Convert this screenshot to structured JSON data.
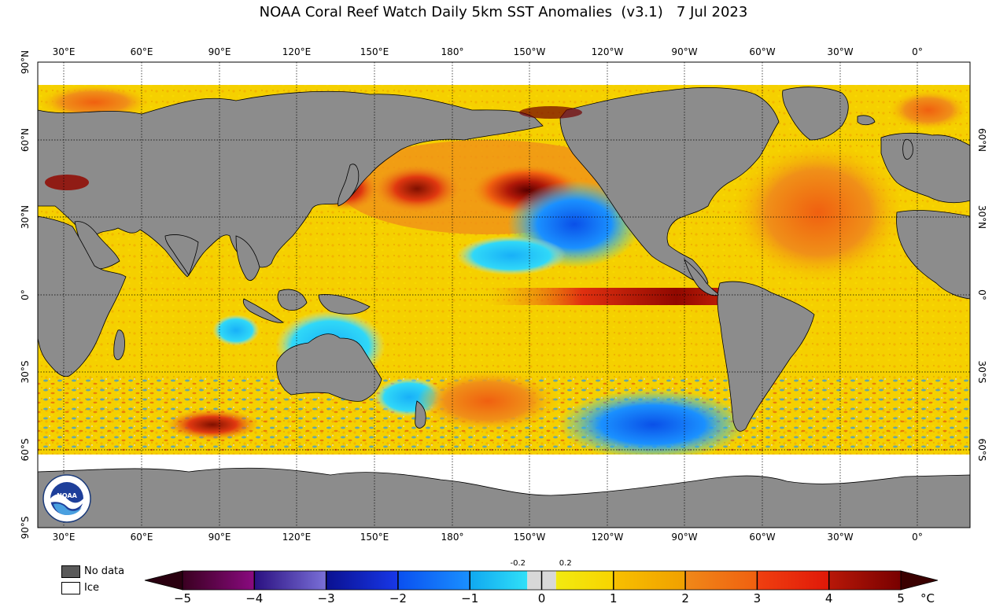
{
  "title": "NOAA Coral Reef Watch Daily 5km SST Anomalies  (v3.1)   7 Jul 2023",
  "map": {
    "longitude_labels": [
      "30°E",
      "60°E",
      "90°E",
      "120°E",
      "150°E",
      "180°",
      "150°W",
      "120°W",
      "90°W",
      "60°W",
      "30°W",
      "0°"
    ],
    "latitude_labels_left": [
      "90°N",
      "60°N",
      "30°N",
      "0°",
      "30°S",
      "60°S",
      "90°S"
    ],
    "latitude_labels_right": [
      "60°N",
      "30°N",
      "0°",
      "30°S",
      "60°S"
    ],
    "colors": {
      "land": "#8c8c8c",
      "ice": "#ffffff",
      "no_data": "#5a5a5a",
      "ocean_base": "#f5d000"
    },
    "features": [
      "positive anomaly North Pacific",
      "negative anomaly east of Hawaii",
      "positive equatorial Pacific (El Niño)",
      "negative anomaly Southern Pacific"
    ]
  },
  "legend": {
    "no_data_label": "No data",
    "ice_label": "Ice"
  },
  "colorbar": {
    "ticks": [
      "−5",
      "−4",
      "−3",
      "−2",
      "−1",
      "0",
      "1",
      "2",
      "3",
      "4",
      "5"
    ],
    "small_labels": [
      "-0.2",
      "0.2"
    ],
    "unit": "°C",
    "range": [
      -5,
      5
    ],
    "segments": [
      {
        "from": -5,
        "to": -4,
        "c1": "#3a0020",
        "c2": "#8a0a80"
      },
      {
        "from": -4,
        "to": -3,
        "c1": "#2a1080",
        "c2": "#7a70d8"
      },
      {
        "from": -3,
        "to": -2,
        "c1": "#0a1090",
        "c2": "#1838e8"
      },
      {
        "from": -2,
        "to": -1,
        "c1": "#0a50f0",
        "c2": "#1a90ff"
      },
      {
        "from": -1,
        "to": -0.2,
        "c1": "#10a8f0",
        "c2": "#30e0f8"
      },
      {
        "from": -0.2,
        "to": 0.2,
        "c1": "#d8d8d8",
        "c2": "#d8d8d8"
      },
      {
        "from": 0.2,
        "to": 1,
        "c1": "#f2ea10",
        "c2": "#f8d400"
      },
      {
        "from": 1,
        "to": 2,
        "c1": "#f8c000",
        "c2": "#f0a000"
      },
      {
        "from": 2,
        "to": 3,
        "c1": "#f08818",
        "c2": "#f06010"
      },
      {
        "from": 3,
        "to": 4,
        "c1": "#f04010",
        "c2": "#e01808"
      },
      {
        "from": 4,
        "to": 5,
        "c1": "#b81808",
        "c2": "#780000"
      }
    ]
  },
  "logo": {
    "text": "NOAA",
    "ring_text": "NATIONAL OCEANIC AND ATMOSPHERIC ADMINISTRATION"
  }
}
